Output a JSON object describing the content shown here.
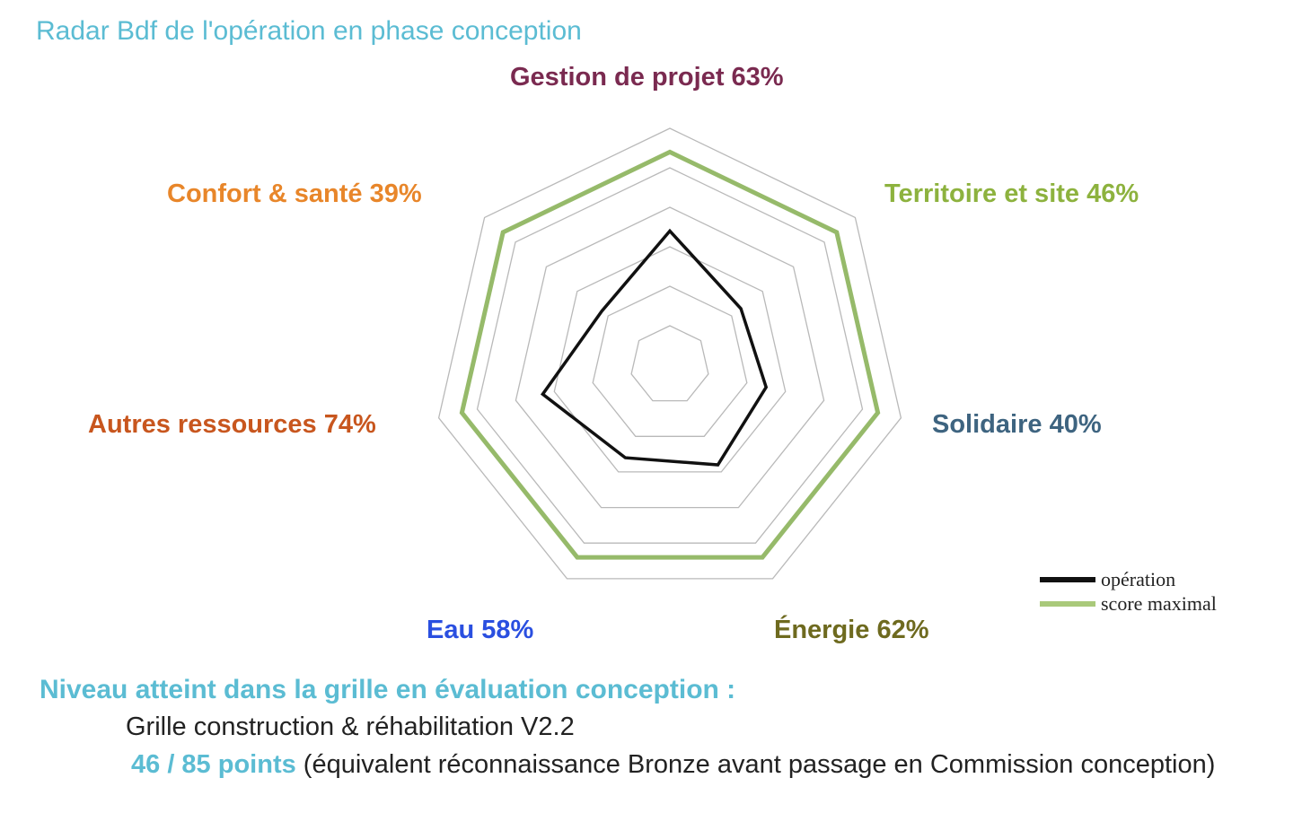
{
  "title": "Radar Bdf de l'opération en phase conception",
  "chart_data": {
    "type": "radar",
    "axes": [
      {
        "name": "Gestion de projet",
        "pct": "63%",
        "color": "#7a2a50"
      },
      {
        "name": "Territoire et site",
        "pct": "46%",
        "color": "#8db23e"
      },
      {
        "name": "Solidaire",
        "pct": "40%",
        "color": "#3e6480"
      },
      {
        "name": "Énergie",
        "pct": "62%",
        "color": "#6e6a1f"
      },
      {
        "name": "Eau",
        "pct": "58%",
        "color": "#2a4fe0"
      },
      {
        "name": "Autres ressources",
        "pct": "74%",
        "color": "#c8561e"
      },
      {
        "name": "Confort & santé",
        "pct": "39%",
        "color": "#e8862a"
      }
    ],
    "range": [
      0,
      6
    ],
    "rings": 6,
    "series": [
      {
        "name": "opération",
        "color": "#111111",
        "values": [
          3.4,
          2.3,
          2.5,
          2.8,
          2.6,
          3.3,
          2.2
        ]
      },
      {
        "name": "score maximal",
        "color": "#96ba6a",
        "values": [
          5.4,
          5.4,
          5.4,
          5.4,
          5.4,
          5.4,
          5.4
        ]
      }
    ]
  },
  "legend": {
    "items": [
      {
        "label": "opération",
        "color": "#111111"
      },
      {
        "label": "score maximal",
        "color": "#a9c97a"
      }
    ]
  },
  "summary": {
    "heading": "Niveau atteint dans la grille en évaluation conception :",
    "grid_name": "Grille construction & réhabilitation V2.2",
    "points": "46 / 85 points",
    "equivalence": "(équivalent réconnaissance Bronze avant passage en Commission conception)"
  },
  "colors": {
    "heading": "#5bbcd3",
    "grid_line": "#b9b9b9"
  }
}
